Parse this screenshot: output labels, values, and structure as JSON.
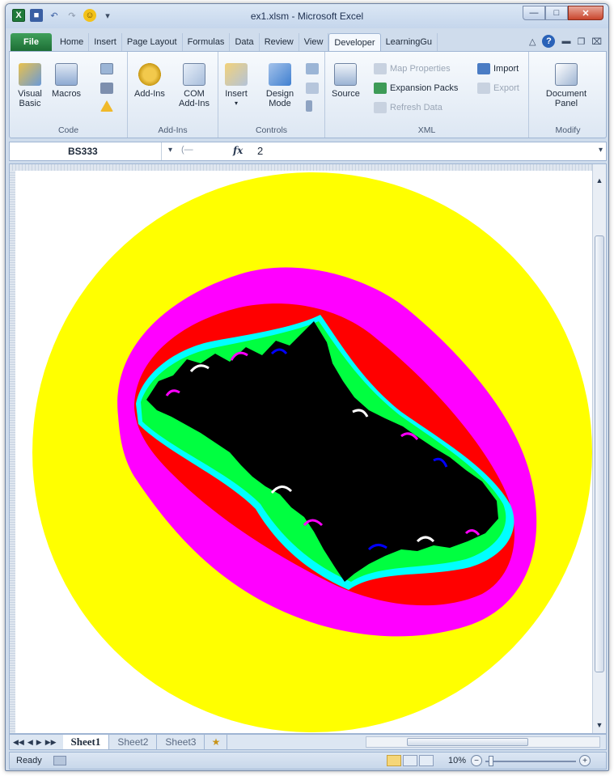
{
  "window": {
    "title": "ex1.xlsm - Microsoft Excel",
    "buttons": {
      "minimize": "—",
      "maximize": "□",
      "close": "✕"
    }
  },
  "tabs": [
    {
      "label": "File"
    },
    {
      "label": "Home"
    },
    {
      "label": "Insert"
    },
    {
      "label": "Page Layout"
    },
    {
      "label": "Formulas"
    },
    {
      "label": "Data"
    },
    {
      "label": "Review"
    },
    {
      "label": "View"
    },
    {
      "label": "Developer"
    },
    {
      "label": "LearningGu"
    }
  ],
  "active_tab": "Developer",
  "ribbon": {
    "code": {
      "label": "Code",
      "visual_basic": "Visual Basic",
      "macros": "Macros"
    },
    "addins": {
      "label": "Add-Ins",
      "addins": "Add-Ins",
      "com_addins": "COM Add-Ins"
    },
    "controls": {
      "label": "Controls",
      "insert": "Insert",
      "design_mode": "Design Mode"
    },
    "xml": {
      "label": "XML",
      "source": "Source",
      "map_properties": "Map Properties",
      "expansion_packs": "Expansion Packs",
      "refresh_data": "Refresh Data",
      "import": "Import",
      "export": "Export"
    },
    "modify": {
      "label": "Modify",
      "document_panel": "Document Panel"
    }
  },
  "formula_bar": {
    "name_box": "BS333",
    "fx": "fx",
    "value": "2"
  },
  "sheets": [
    "Sheet1",
    "Sheet2",
    "Sheet3"
  ],
  "active_sheet": "Sheet1",
  "status": {
    "text": "Ready",
    "zoom": "10%"
  },
  "image": {
    "description_colors": {
      "outer": "#ffff00",
      "ring1": "#ff00ff",
      "ring2": "#ff0000",
      "ring3": "#00ffff",
      "ring4": "#00ff00",
      "core": "#000000"
    }
  },
  "icons": [
    "excel-icon",
    "save-icon",
    "undo-icon",
    "redo-icon",
    "smiley-icon",
    "help-icon",
    "fx-icon"
  ]
}
